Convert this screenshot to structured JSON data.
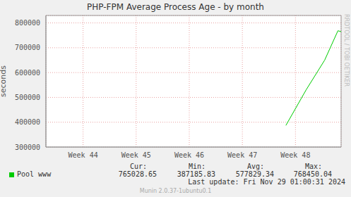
{
  "chart_data": {
    "type": "line",
    "title": "PHP-FPM Average Process Age - by month",
    "y_label": "seconds",
    "x": [
      47.82,
      48.2,
      48.55,
      48.8,
      48.86
    ],
    "series": [
      {
        "name": "Pool www",
        "color": "#00cc00",
        "values": [
          387185.83,
          530000,
          650000,
          768450.04,
          765028.65
        ]
      }
    ],
    "xlim": [
      43.3,
      48.86
    ],
    "xticks": [
      {
        "value": 44,
        "label": "Week 44"
      },
      {
        "value": 45,
        "label": "Week 45"
      },
      {
        "value": 46,
        "label": "Week 46"
      },
      {
        "value": 47,
        "label": "Week 47"
      },
      {
        "value": 48,
        "label": "Week 48"
      }
    ],
    "ylim": [
      300000,
      830000
    ],
    "yticks": [
      300000,
      400000,
      500000,
      600000,
      700000,
      800000
    ],
    "grid": true,
    "stat_labels": [
      "Cur:",
      "Min:",
      "Avg:",
      "Max:"
    ],
    "stat_values": [
      765028.65,
      387185.83,
      577829.34,
      768450.04
    ],
    "last_update": "Last update: Fri Nov 29 01:00:31 2024",
    "footer": "Munin 2.0.37-1ubuntu0.1",
    "side_text": "RRDTOOL / TOBI OETIKER"
  }
}
